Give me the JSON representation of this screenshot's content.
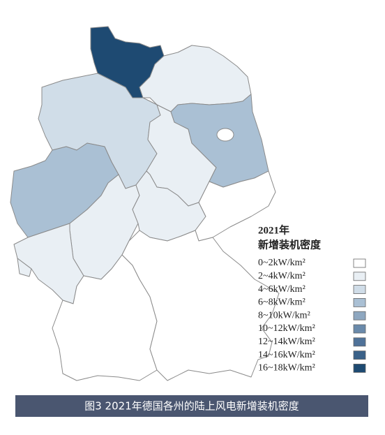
{
  "legend": {
    "title": "2021年",
    "subtitle": "新增装机密度",
    "items": [
      {
        "label": "0~2kW/km²",
        "color": "#ffffff"
      },
      {
        "label": "2~4kW/km²",
        "color": "#e9eff4"
      },
      {
        "label": "4~6kW/km²",
        "color": "#d0dde8"
      },
      {
        "label": "6~8kW/km²",
        "color": "#aac0d4"
      },
      {
        "label": "8~10kW/km²",
        "color": "#8ea7c0"
      },
      {
        "label": "10~12kW/km²",
        "color": "#6a8aab"
      },
      {
        "label": "12~14kW/km²",
        "color": "#4f7299"
      },
      {
        "label": "14~16kW/km²",
        "color": "#3a6188"
      },
      {
        "label": "16~18kW/km²",
        "color": "#1e4a72"
      }
    ]
  },
  "caption": "图3 2021年德国各州的陆上风电新增装机密度"
}
